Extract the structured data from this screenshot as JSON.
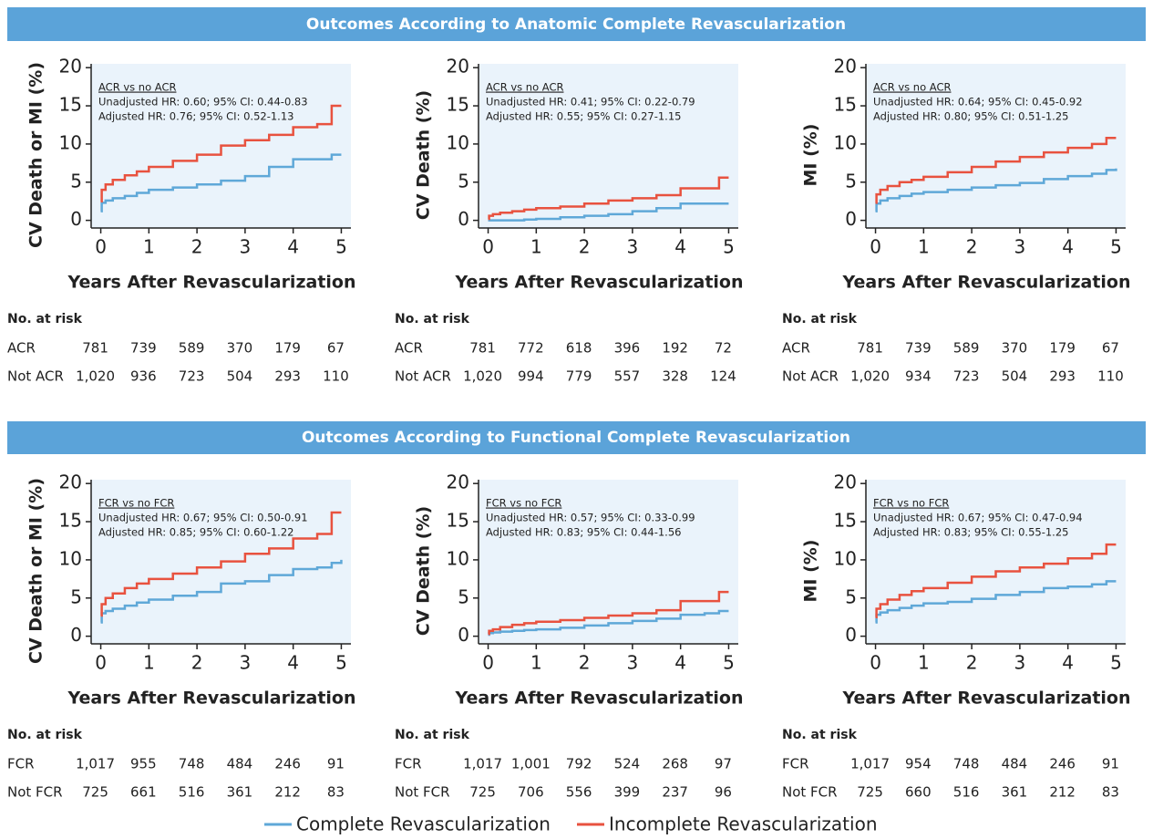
{
  "sections": [
    {
      "title": "Outcomes According to Anatomic Complete Revascularization"
    },
    {
      "title": "Outcomes According to Functional Complete Revascularization"
    }
  ],
  "chart_data": [
    {
      "type": "step",
      "ylabel": "CV Death or MI (%)",
      "xlabel": "Years After Revascularization",
      "annotations": [
        "ACR vs no ACR",
        "Unadjusted HR: 0.60; 95% CI: 0.44-0.83",
        "Adjusted HR: 0.76; 95% CI: 0.52-1.13"
      ],
      "x": [
        0,
        0.02,
        0.1,
        0.25,
        0.5,
        0.75,
        1,
        1.5,
        2,
        2.5,
        3,
        3.5,
        4,
        4.5,
        4.8,
        5
      ],
      "series": [
        {
          "name": "Complete Revascularization",
          "color": "#5fa8d8",
          "values": [
            1.2,
            2.3,
            2.6,
            2.9,
            3.2,
            3.6,
            4.0,
            4.3,
            4.7,
            5.2,
            5.8,
            7.0,
            8.0,
            8.0,
            8.6,
            8.6
          ]
        },
        {
          "name": "Incomplete Revascularization",
          "color": "#e8523f",
          "values": [
            2.5,
            4.0,
            4.7,
            5.3,
            5.9,
            6.4,
            7.0,
            7.8,
            8.6,
            9.8,
            10.5,
            11.2,
            12.2,
            12.6,
            15.0,
            15.0
          ]
        }
      ],
      "xlim": [
        -0.2,
        5.2
      ],
      "ylim": [
        -1,
        20.5
      ],
      "xticks": [
        0,
        1,
        2,
        3,
        4,
        5
      ],
      "yticks": [
        0,
        5,
        10,
        15,
        20
      ],
      "risk_table": {
        "title": "No. at risk",
        "rows": [
          {
            "label": "ACR",
            "values": [
              "781",
              "739",
              "589",
              "370",
              "179",
              "67"
            ]
          },
          {
            "label": "Not ACR",
            "values": [
              "1,020",
              "936",
              "723",
              "504",
              "293",
              "110"
            ]
          }
        ]
      }
    },
    {
      "type": "step",
      "ylabel": "CV Death (%)",
      "xlabel": "Years After Revascularization",
      "annotations": [
        "ACR vs no ACR",
        "Unadjusted HR: 0.41; 95% CI: 0.22-0.79",
        "Adjusted HR: 0.55; 95% CI: 0.27-1.15"
      ],
      "x": [
        0,
        0.02,
        0.1,
        0.25,
        0.5,
        0.75,
        1,
        1.5,
        2,
        2.5,
        3,
        3.5,
        4,
        4.5,
        4.8,
        5
      ],
      "series": [
        {
          "name": "Complete Revascularization",
          "color": "#5fa8d8",
          "values": [
            0,
            0,
            0,
            0,
            0,
            0.1,
            0.2,
            0.4,
            0.6,
            0.8,
            1.2,
            1.6,
            2.2,
            2.2,
            2.2,
            2.2
          ]
        },
        {
          "name": "Incomplete Revascularization",
          "color": "#e8523f",
          "values": [
            0.2,
            0.6,
            0.8,
            1.0,
            1.2,
            1.4,
            1.6,
            1.8,
            2.2,
            2.6,
            2.9,
            3.3,
            4.2,
            4.2,
            5.6,
            5.6
          ]
        }
      ],
      "xlim": [
        -0.2,
        5.2
      ],
      "ylim": [
        -1,
        20.5
      ],
      "xticks": [
        0,
        1,
        2,
        3,
        4,
        5
      ],
      "yticks": [
        0,
        5,
        10,
        15,
        20
      ],
      "risk_table": {
        "title": "No. at risk",
        "rows": [
          {
            "label": "ACR",
            "values": [
              "781",
              "772",
              "618",
              "396",
              "192",
              "72"
            ]
          },
          {
            "label": "Not ACR",
            "values": [
              "1,020",
              "994",
              "779",
              "557",
              "328",
              "124"
            ]
          }
        ]
      }
    },
    {
      "type": "step",
      "ylabel": "MI (%)",
      "xlabel": "Years After Revascularization",
      "annotations": [
        "ACR vs no ACR",
        "Unadjusted HR: 0.64; 95% CI: 0.45-0.92",
        "Adjusted HR: 0.80; 95% CI: 0.51-1.25"
      ],
      "x": [
        0,
        0.02,
        0.1,
        0.25,
        0.5,
        0.75,
        1,
        1.5,
        2,
        2.5,
        3,
        3.5,
        4,
        4.5,
        4.8,
        5
      ],
      "series": [
        {
          "name": "Complete Revascularization",
          "color": "#5fa8d8",
          "values": [
            1.2,
            2.2,
            2.6,
            2.9,
            3.2,
            3.5,
            3.7,
            4.0,
            4.3,
            4.6,
            4.9,
            5.4,
            5.8,
            6.1,
            6.6,
            6.8
          ]
        },
        {
          "name": "Incomplete Revascularization",
          "color": "#e8523f",
          "values": [
            2.3,
            3.4,
            4.0,
            4.5,
            5.0,
            5.3,
            5.7,
            6.3,
            7.0,
            7.7,
            8.3,
            8.9,
            9.5,
            10.0,
            10.8,
            10.8
          ]
        }
      ],
      "xlim": [
        -0.2,
        5.2
      ],
      "ylim": [
        -1,
        20.5
      ],
      "xticks": [
        0,
        1,
        2,
        3,
        4,
        5
      ],
      "yticks": [
        0,
        5,
        10,
        15,
        20
      ],
      "risk_table": {
        "title": "No. at risk",
        "rows": [
          {
            "label": "ACR",
            "values": [
              "781",
              "739",
              "589",
              "370",
              "179",
              "67"
            ]
          },
          {
            "label": "Not ACR",
            "values": [
              "1,020",
              "934",
              "723",
              "504",
              "293",
              "110"
            ]
          }
        ]
      }
    },
    {
      "type": "step",
      "ylabel": "CV Death or MI (%)",
      "xlabel": "Years After Revascularization",
      "annotations": [
        "FCR vs no FCR",
        "Unadjusted HR: 0.67; 95% CI: 0.50-0.91",
        "Adjusted HR: 0.85; 95% CI: 0.60-1.22"
      ],
      "x": [
        0,
        0.02,
        0.1,
        0.25,
        0.5,
        0.75,
        1,
        1.5,
        2,
        2.5,
        3,
        3.5,
        4,
        4.5,
        4.8,
        5
      ],
      "series": [
        {
          "name": "Complete Revascularization",
          "color": "#5fa8d8",
          "values": [
            1.8,
            3.0,
            3.3,
            3.6,
            4.0,
            4.4,
            4.8,
            5.3,
            5.8,
            6.9,
            7.2,
            8.0,
            8.8,
            9.0,
            9.6,
            10.0
          ]
        },
        {
          "name": "Incomplete Revascularization",
          "color": "#e8523f",
          "values": [
            2.7,
            4.2,
            5.0,
            5.6,
            6.3,
            6.9,
            7.5,
            8.2,
            9.0,
            9.8,
            10.8,
            11.5,
            12.8,
            13.4,
            16.2,
            16.2
          ]
        }
      ],
      "xlim": [
        -0.2,
        5.2
      ],
      "ylim": [
        -1,
        20.5
      ],
      "xticks": [
        0,
        1,
        2,
        3,
        4,
        5
      ],
      "yticks": [
        0,
        5,
        10,
        15,
        20
      ],
      "risk_table": {
        "title": "No. at risk",
        "rows": [
          {
            "label": "FCR",
            "values": [
              "1,017",
              "955",
              "748",
              "484",
              "246",
              "91"
            ]
          },
          {
            "label": "Not FCR",
            "values": [
              "725",
              "661",
              "516",
              "361",
              "212",
              "83"
            ]
          }
        ]
      }
    },
    {
      "type": "step",
      "ylabel": "CV Death (%)",
      "xlabel": "Years After Revascularization",
      "annotations": [
        "FCR vs no FCR",
        "Unadjusted HR: 0.57; 95% CI: 0.33-0.99",
        "Adjusted HR: 0.83; 95% CI: 0.44-1.56"
      ],
      "x": [
        0,
        0.02,
        0.1,
        0.25,
        0.5,
        0.75,
        1,
        1.5,
        2,
        2.5,
        3,
        3.5,
        4,
        4.5,
        4.8,
        5
      ],
      "series": [
        {
          "name": "Complete Revascularization",
          "color": "#5fa8d8",
          "values": [
            0.2,
            0.4,
            0.5,
            0.6,
            0.7,
            0.8,
            0.9,
            1.1,
            1.4,
            1.7,
            2.0,
            2.3,
            2.8,
            3.0,
            3.3,
            3.3
          ]
        },
        {
          "name": "Incomplete Revascularization",
          "color": "#e8523f",
          "values": [
            0.3,
            0.7,
            0.9,
            1.2,
            1.5,
            1.7,
            1.9,
            2.1,
            2.4,
            2.7,
            3.0,
            3.4,
            4.6,
            4.6,
            5.8,
            5.8
          ]
        }
      ],
      "xlim": [
        -0.2,
        5.2
      ],
      "ylim": [
        -1,
        20.5
      ],
      "xticks": [
        0,
        1,
        2,
        3,
        4,
        5
      ],
      "yticks": [
        0,
        5,
        10,
        15,
        20
      ],
      "risk_table": {
        "title": "No. at risk",
        "rows": [
          {
            "label": "FCR",
            "values": [
              "1,017",
              "1,001",
              "792",
              "524",
              "268",
              "97"
            ]
          },
          {
            "label": "Not FCR",
            "values": [
              "725",
              "706",
              "556",
              "399",
              "237",
              "96"
            ]
          }
        ]
      }
    },
    {
      "type": "step",
      "ylabel": "MI (%)",
      "xlabel": "Years After Revascularization",
      "annotations": [
        "FCR vs no FCR",
        "Unadjusted HR: 0.67; 95% CI: 0.47-0.94",
        "Adjusted HR: 0.83; 95% CI: 0.55-1.25"
      ],
      "x": [
        0,
        0.02,
        0.1,
        0.25,
        0.5,
        0.75,
        1,
        1.5,
        2,
        2.5,
        3,
        3.5,
        4,
        4.5,
        4.8,
        5
      ],
      "series": [
        {
          "name": "Complete Revascularization",
          "color": "#5fa8d8",
          "values": [
            1.8,
            2.8,
            3.1,
            3.4,
            3.7,
            4.0,
            4.3,
            4.5,
            4.9,
            5.4,
            5.8,
            6.3,
            6.5,
            6.8,
            7.2,
            7.2
          ]
        },
        {
          "name": "Incomplete Revascularization",
          "color": "#e8523f",
          "values": [
            2.5,
            3.6,
            4.2,
            4.8,
            5.4,
            5.9,
            6.3,
            7.0,
            7.8,
            8.5,
            9.0,
            9.5,
            10.2,
            10.8,
            12.0,
            12.0
          ]
        }
      ],
      "xlim": [
        -0.2,
        5.2
      ],
      "ylim": [
        -1,
        20.5
      ],
      "xticks": [
        0,
        1,
        2,
        3,
        4,
        5
      ],
      "yticks": [
        0,
        5,
        10,
        15,
        20
      ],
      "risk_table": {
        "title": "No. at risk",
        "rows": [
          {
            "label": "FCR",
            "values": [
              "1,017",
              "954",
              "748",
              "484",
              "246",
              "91"
            ]
          },
          {
            "label": "Not FCR",
            "values": [
              "725",
              "660",
              "516",
              "361",
              "212",
              "83"
            ]
          }
        ]
      }
    }
  ]
}
